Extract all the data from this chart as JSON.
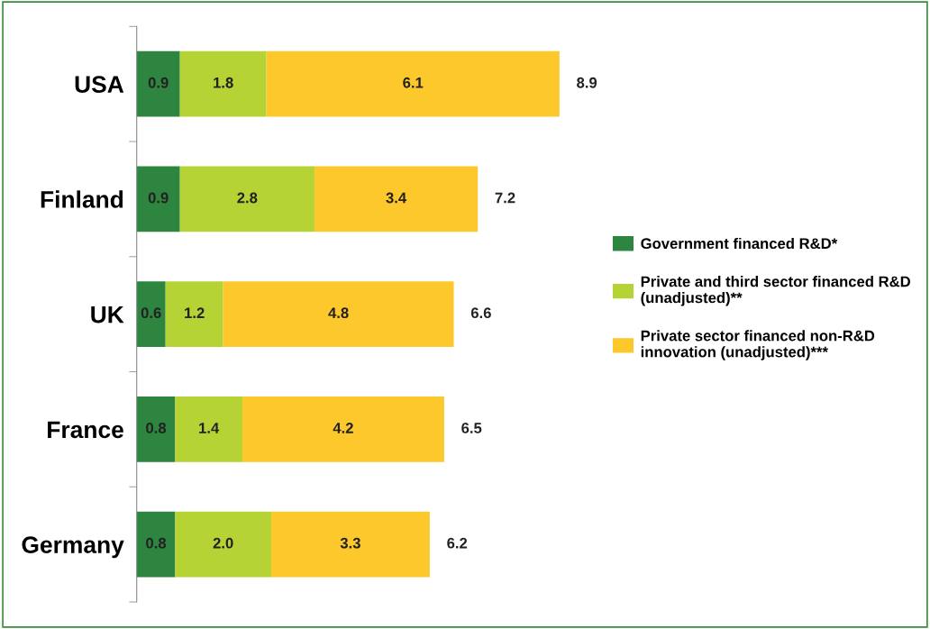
{
  "chart_data": {
    "type": "bar",
    "orientation": "horizontal",
    "stacked": true,
    "categories": [
      "USA",
      "Finland",
      "UK",
      "France",
      "Germany"
    ],
    "series": [
      {
        "name": "Government financed R&D*",
        "color": "#2e8540",
        "values": [
          0.9,
          0.9,
          0.6,
          0.8,
          0.8
        ]
      },
      {
        "name": "Private and third sector financed R&D\n(unadjusted)**",
        "color": "#b5d334",
        "values": [
          1.8,
          2.8,
          1.2,
          1.4,
          2.0
        ],
        "value_labels": [
          "1.8",
          "2.8",
          "1.2",
          "1.4",
          "2.0"
        ]
      },
      {
        "name": "Private sector financed non-R&D\ninnovation (unadjusted)***",
        "color": "#fdc82b",
        "values": [
          6.1,
          3.4,
          4.8,
          4.2,
          3.3
        ]
      }
    ],
    "totals": [
      "8.9",
      "7.2",
      "6.6",
      "6.5",
      "6.2"
    ],
    "data_labels": true,
    "legend": "right",
    "grid": false,
    "tick_labels": "y"
  }
}
